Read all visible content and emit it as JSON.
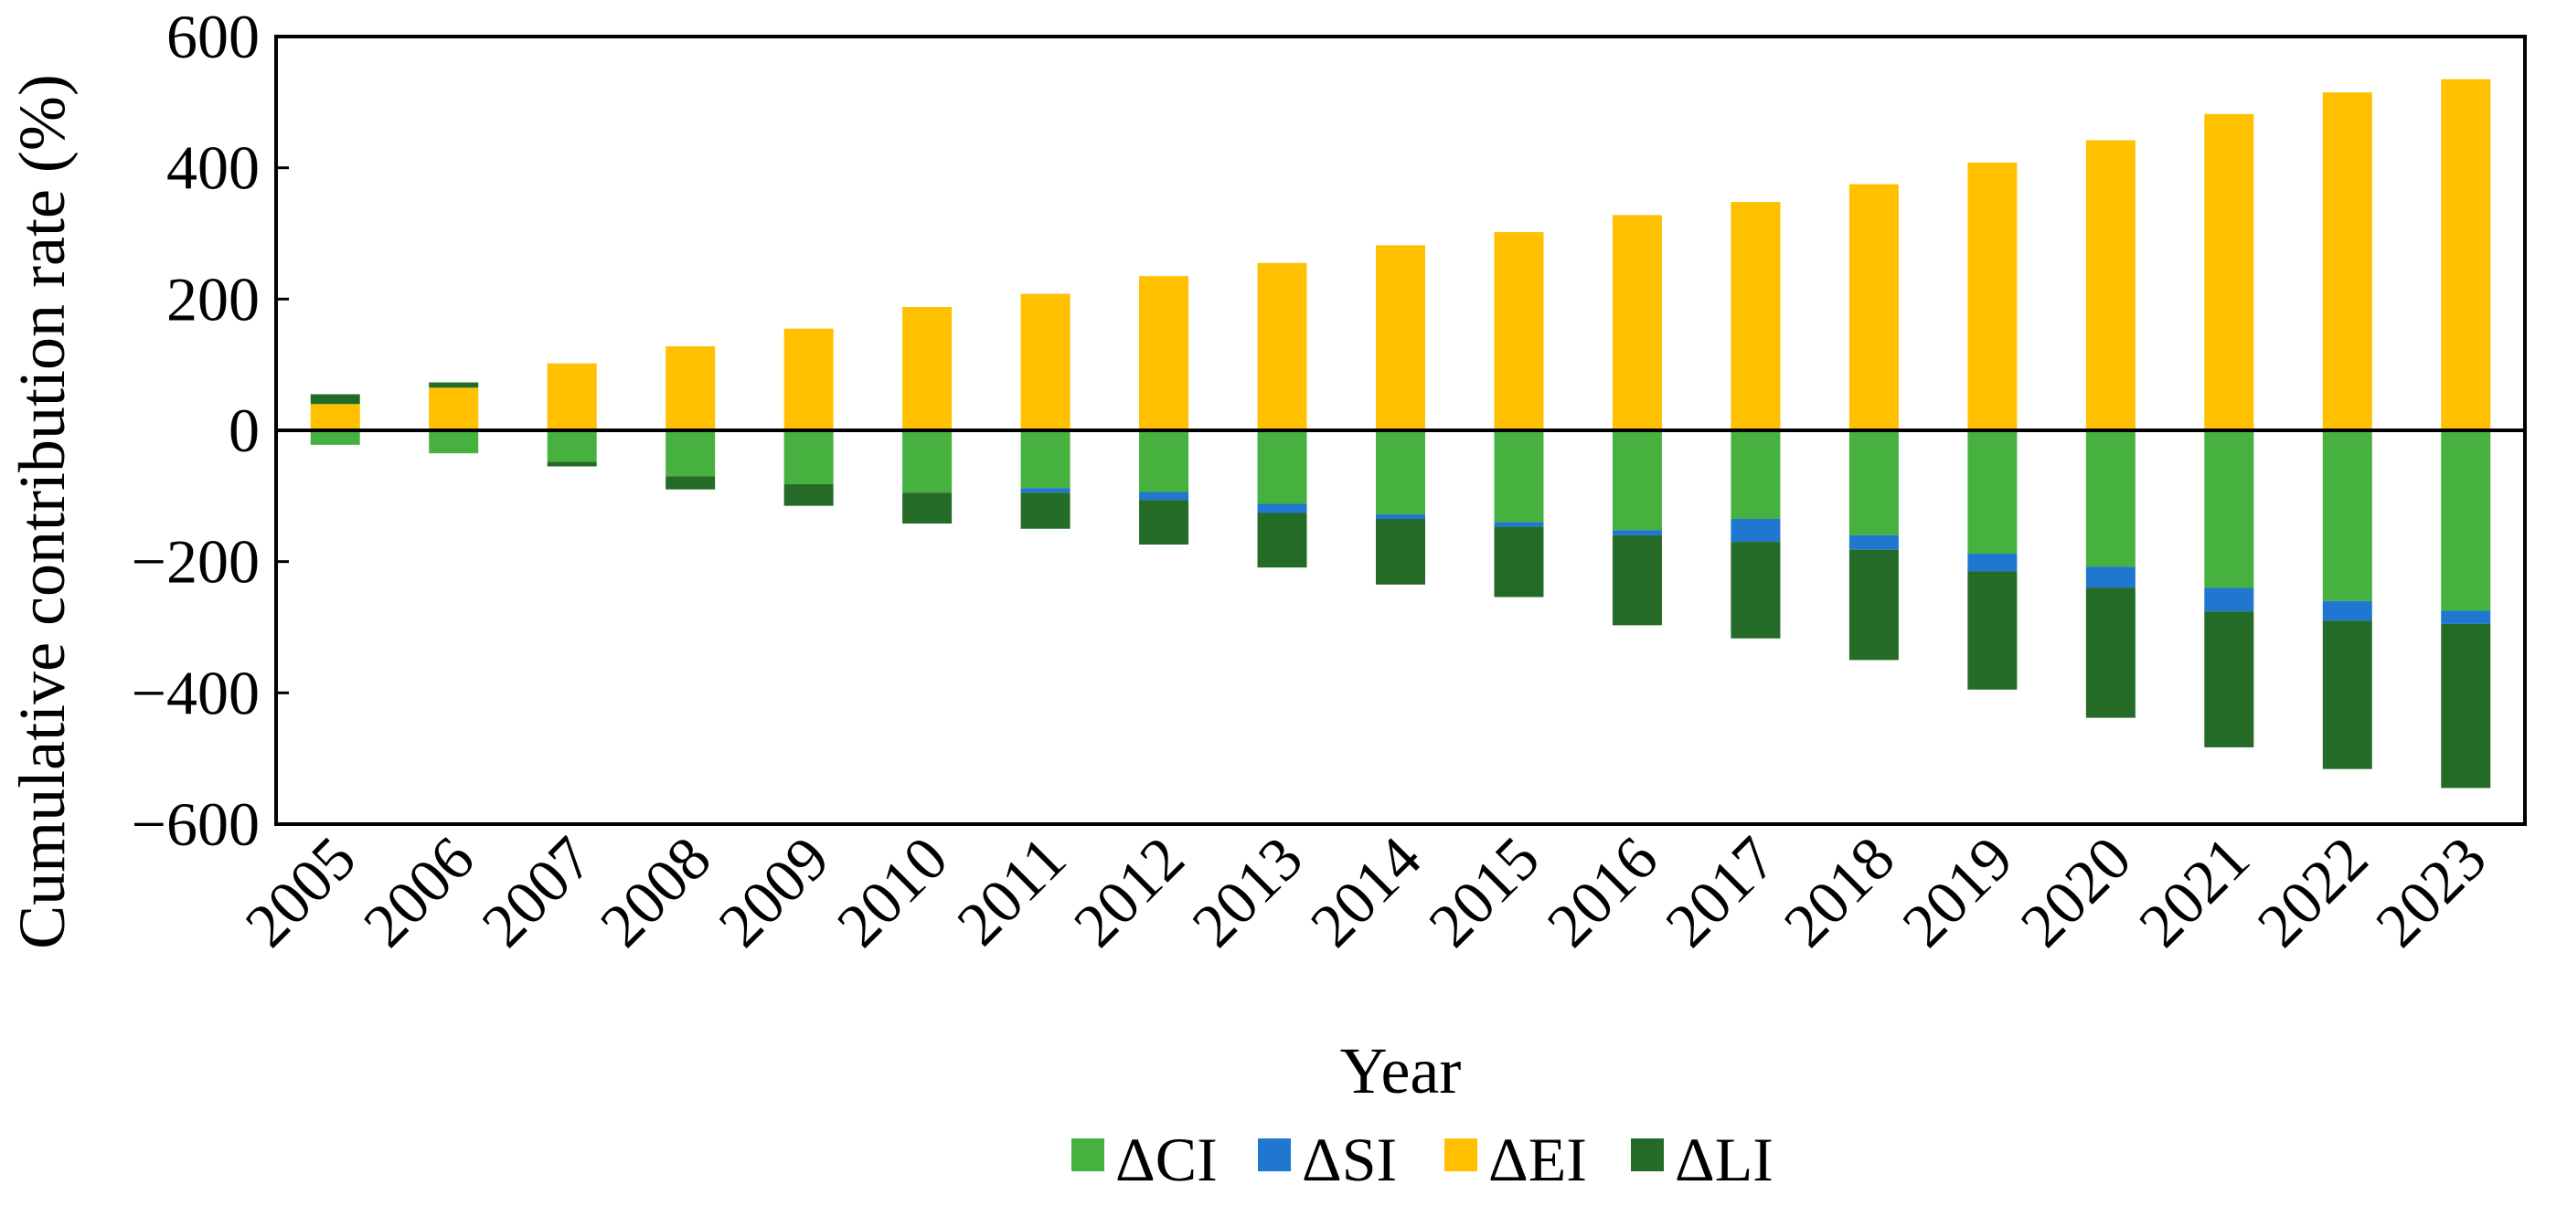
{
  "chart_data": {
    "type": "bar",
    "stacked": true,
    "title": "",
    "xlabel": "Year",
    "ylabel": "Cumulative  contribution  rate (%)",
    "ylim": [
      -600,
      600
    ],
    "yticks": [
      600,
      400,
      200,
      0,
      -200,
      -400,
      -600
    ],
    "ytick_labels": [
      "600",
      "400",
      "200",
      "0",
      "−200",
      "−400",
      "−600"
    ],
    "grid": false,
    "legend_position": "bottom",
    "categories": [
      "2005",
      "2006",
      "2007",
      "2008",
      "2009",
      "2010",
      "2011",
      "2012",
      "2013",
      "2014",
      "2015",
      "2016",
      "2017",
      "2018",
      "2019",
      "2020",
      "2021",
      "2022",
      "2023"
    ],
    "series": [
      {
        "name": "ΔCI",
        "color": "#46b13f",
        "values": [
          -22,
          -35,
          -48,
          -70,
          -82,
          -95,
          -88,
          -94,
          -112,
          -128,
          -140,
          -152,
          -135,
          -160,
          -188,
          -208,
          -240,
          -260,
          -275
        ]
      },
      {
        "name": "ΔSI",
        "color": "#1f77cf",
        "values": [
          0,
          0,
          0,
          0,
          0,
          0,
          -7,
          -12,
          -14,
          -7,
          -7,
          -8,
          -35,
          -22,
          -27,
          -32,
          -36,
          -30,
          -20
        ]
      },
      {
        "name": "ΔEI",
        "color": "#ffc000",
        "values": [
          40,
          65,
          102,
          128,
          155,
          188,
          208,
          235,
          255,
          282,
          302,
          328,
          348,
          375,
          408,
          442,
          482,
          515,
          535
        ]
      },
      {
        "name": "ΔLI",
        "color": "#246b27",
        "values": [
          15,
          8,
          -7,
          -20,
          -33,
          -47,
          -55,
          -68,
          -83,
          -100,
          -107,
          -137,
          -147,
          -168,
          -180,
          -198,
          -207,
          -226,
          -250
        ]
      }
    ]
  }
}
